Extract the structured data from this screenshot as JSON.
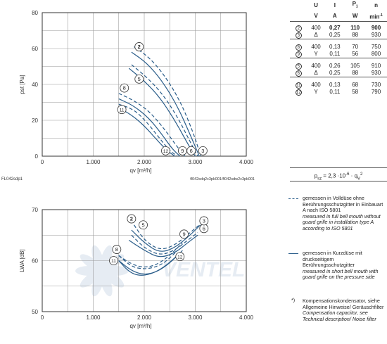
{
  "chart_data": [
    {
      "type": "line",
      "xlabel": "qv [m³/h]",
      "ylabel": "pst [Pa]",
      "xlim": [
        0,
        4000
      ],
      "ylim": [
        0,
        80
      ],
      "xticks": [
        "0",
        "1.000",
        "2.000",
        "3.000",
        "4.000"
      ],
      "yticks": [
        "0",
        "20",
        "40",
        "60",
        "80"
      ],
      "grid": true,
      "left_note": "FL042sdp1",
      "right_note": "fl042sdq2c3pk001/fl042sdw2c3pk001",
      "series": [
        {
          "marker": "2",
          "style": "dashed",
          "x": [
            1800,
            2100,
            2400,
            2700,
            2950,
            3110
          ],
          "y": [
            61,
            55,
            45,
            31,
            14,
            0
          ]
        },
        {
          "marker": "3",
          "style": "solid",
          "x": [
            1750,
            2050,
            2350,
            2650,
            2900,
            3080
          ],
          "y": [
            58,
            52,
            42,
            28,
            12,
            0
          ]
        },
        {
          "marker": "5",
          "style": "dashed",
          "x": [
            1750,
            2050,
            2350,
            2650,
            2900,
            3050
          ],
          "y": [
            51,
            44,
            35,
            22,
            8,
            0
          ]
        },
        {
          "marker": "6",
          "style": "solid",
          "x": [
            1700,
            2000,
            2300,
            2600,
            2850,
            3000
          ],
          "y": [
            49,
            42,
            33,
            20,
            7,
            0
          ]
        },
        {
          "marker": "8",
          "style": "dashed",
          "x": [
            1500,
            1800,
            2100,
            2400,
            2650,
            2800
          ],
          "y": [
            35,
            31,
            25,
            15,
            5,
            0
          ]
        },
        {
          "marker": "9",
          "style": "solid",
          "x": [
            1500,
            1800,
            2100,
            2350,
            2550,
            2700
          ],
          "y": [
            32,
            28,
            21,
            12,
            4,
            0
          ]
        },
        {
          "marker": "11",
          "style": "solid",
          "x": [
            1500,
            1750,
            2000,
            2250,
            2450,
            2600
          ],
          "y": [
            27,
            23,
            17,
            9,
            3,
            0
          ]
        },
        {
          "marker": "12",
          "style": "dashed",
          "x": [
            1500,
            1800,
            2050,
            2300,
            2500,
            2650
          ],
          "y": [
            29,
            26,
            19,
            10,
            3,
            0
          ]
        }
      ],
      "labels": [
        {
          "text": "2",
          "x": 1900,
          "y": 61
        },
        {
          "text": "5",
          "x": 1900,
          "y": 43
        },
        {
          "text": "8",
          "x": 1610,
          "y": 38
        },
        {
          "text": "11",
          "x": 1560,
          "y": 26
        },
        {
          "text": "12",
          "x": 2420,
          "y": 3
        },
        {
          "text": "9",
          "x": 2750,
          "y": 3
        },
        {
          "text": "6",
          "x": 2920,
          "y": 3
        },
        {
          "text": "3",
          "x": 3150,
          "y": 3
        }
      ]
    },
    {
      "type": "line",
      "xlabel": "qv [m³/h]",
      "ylabel": "LWA [dB]",
      "xlim": [
        0,
        4000
      ],
      "ylim": [
        50,
        70
      ],
      "xticks": [
        "0",
        "1.000",
        "2.000",
        "3.000",
        "4.000"
      ],
      "yticks": [
        "50",
        "60",
        "70"
      ],
      "grid": true,
      "watermark": "VENTEL",
      "series": [
        {
          "marker": "2",
          "style": "dashed",
          "x": [
            1800,
            2000,
            2300,
            2600,
            2900,
            3080
          ],
          "y": [
            67,
            64,
            62,
            63,
            65.5,
            67
          ]
        },
        {
          "marker": "3",
          "style": "solid",
          "x": [
            1750,
            2000,
            2300,
            2600,
            2900,
            3100
          ],
          "y": [
            66,
            63.5,
            61.5,
            62.5,
            65,
            67
          ]
        },
        {
          "marker": "5",
          "style": "dashed",
          "x": [
            1750,
            2000,
            2300,
            2600,
            2850,
            3050
          ],
          "y": [
            65,
            62.5,
            61,
            62,
            64,
            65.5
          ]
        },
        {
          "marker": "6",
          "style": "solid",
          "x": [
            1700,
            2000,
            2300,
            2600,
            2850,
            3050
          ],
          "y": [
            64,
            62,
            60.5,
            61.5,
            63.5,
            65
          ]
        },
        {
          "marker": "8",
          "style": "dashed",
          "x": [
            1500,
            1750,
            2000,
            2250,
            2500,
            2750
          ],
          "y": [
            61,
            59.3,
            58.6,
            59.2,
            61,
            63.5
          ]
        },
        {
          "marker": "9",
          "style": "solid",
          "x": [
            1500,
            1750,
            2000,
            2250,
            2500,
            2750
          ],
          "y": [
            60,
            58,
            57.2,
            57.8,
            59.5,
            62
          ]
        },
        {
          "marker": "11",
          "style": "solid",
          "x": [
            1500,
            1700,
            1900,
            2150,
            2400,
            2650
          ],
          "y": [
            60,
            57.8,
            57,
            57.4,
            58.8,
            61
          ]
        },
        {
          "marker": "12",
          "style": "dashed",
          "x": [
            1500,
            1750,
            2000,
            2250,
            2450,
            2650
          ],
          "y": [
            61,
            58.8,
            58.3,
            58.8,
            60,
            62
          ]
        }
      ],
      "labels": [
        {
          "text": "2",
          "x": 1750,
          "y": 68.2
        },
        {
          "text": "5",
          "x": 1980,
          "y": 67
        },
        {
          "text": "8",
          "x": 1460,
          "y": 62.2
        },
        {
          "text": "11",
          "x": 1400,
          "y": 60
        },
        {
          "text": "12",
          "x": 2700,
          "y": 60.8
        },
        {
          "text": "9",
          "x": 2780,
          "y": 65.2
        },
        {
          "text": "6",
          "x": 3170,
          "y": 66.3
        },
        {
          "text": "3",
          "x": 3170,
          "y": 67.8
        }
      ]
    }
  ],
  "table": {
    "headers": [
      "",
      "U",
      "I",
      "P1",
      "n"
    ],
    "units": [
      "",
      "V",
      "A",
      "W",
      "min-1"
    ],
    "rows": [
      {
        "marker": "2",
        "conn": "",
        "U": "400",
        "I": "0,27",
        "P": "110",
        "n": "900",
        "bold": true,
        "group_start": false
      },
      {
        "marker": "3",
        "conn": "Δ",
        "U": "",
        "I": "0,25",
        "P": "88",
        "n": "930",
        "bold": false,
        "group_start": false
      },
      {
        "marker": "8",
        "conn": "",
        "U": "400",
        "I": "0,13",
        "P": "70",
        "n": "750",
        "bold": false,
        "group_start": true
      },
      {
        "marker": "9",
        "conn": "Y",
        "U": "",
        "I": "0,11",
        "P": "56",
        "n": "800",
        "bold": false,
        "group_start": false
      },
      {
        "marker": "5",
        "conn": "",
        "U": "400",
        "I": "0,26",
        "P": "105",
        "n": "910",
        "bold": false,
        "group_start": true
      },
      {
        "marker": "6",
        "conn": "Δ",
        "U": "",
        "I": "0,25",
        "P": "88",
        "n": "930",
        "bold": false,
        "group_start": false
      },
      {
        "marker": "11",
        "conn": "",
        "U": "400",
        "I": "0,13",
        "P": "68",
        "n": "730",
        "bold": false,
        "group_start": true
      },
      {
        "marker": "12",
        "conn": "Y",
        "U": "",
        "I": "0,11",
        "P": "58",
        "n": "790",
        "bold": false,
        "group_start": false
      }
    ],
    "formula": "psz = 2,3 ·10-6 · qv2"
  },
  "legend": {
    "dashed_de": "gemessen in Volldüse ohne Berührungsschutzgitter in Einbauart A nach ISO 5801",
    "dashed_en": "measured in full bell mouth without guard grille in installation type A according to ISO 5801",
    "solid_de": "gemessen in Kurzdüse mit druckseitigem Berührungsschutzgitter",
    "solid_en": "measured in short bell mouth with guard grille on the pressure side",
    "note_mark": "*)",
    "note_de": "Kompensationskondensator, siehe Allgemeine Hinweise/ Geräuschfilter",
    "note_en": "Compensation capacitor, see Technical description/ Noise filter"
  },
  "colors": {
    "curve": "#2a5d8a",
    "grid": "#9a9a9a",
    "frame": "#333333"
  }
}
